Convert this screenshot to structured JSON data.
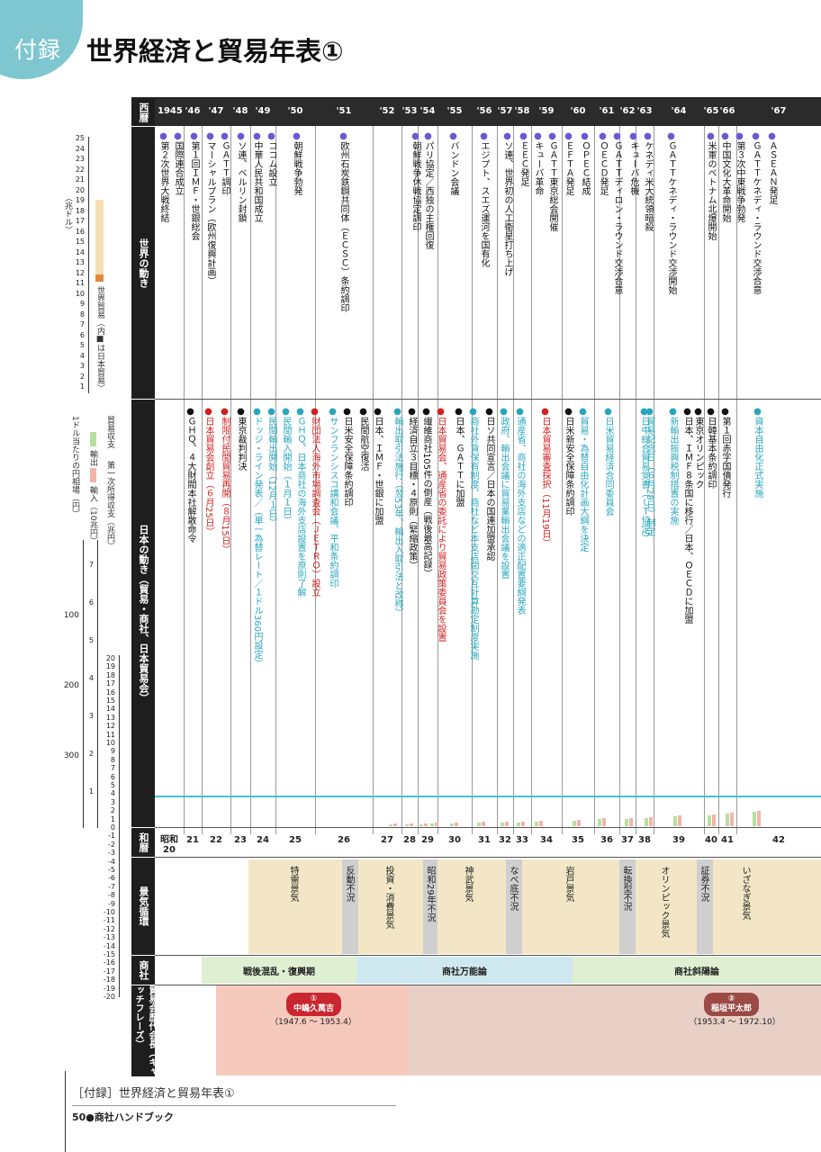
{
  "header": {
    "tab": "付録",
    "title": "世界経済と貿易年表①"
  },
  "row_heads": {
    "seireki": "西暦",
    "world": "世界の動き",
    "japan": "日本の動き（貿易・商社、日本貿易会）",
    "wareki": "和暦",
    "cycle": "景気循環",
    "shosha": "商社",
    "presidents": "貿易会歴代会長（キャッチフレーズ）"
  },
  "left_axis": {
    "world_trade_label": "世界貿易（内■は日本貿易）",
    "unit_label": "（兆ドル）",
    "world_ticks": [
      "25",
      "24",
      "23",
      "22",
      "21",
      "20",
      "19",
      "18",
      "17",
      "16",
      "15",
      "14",
      "13",
      "12",
      "11",
      "10",
      "9",
      "8",
      "7",
      "6",
      "5",
      "4",
      "3",
      "2",
      "1"
    ],
    "legend_balance": "貿易収支",
    "legend_income": "第一次所得収支（兆円）",
    "legend_export": "輸出",
    "legend_import": "輸入（10兆円）",
    "legend_fx": "1ドル当たりの円相場（円）",
    "fx_ticks": [
      "100",
      "200",
      "300"
    ],
    "import_ticks": [
      "7",
      "6",
      "5",
      "4",
      "3",
      "2",
      "1"
    ],
    "bal_ticks": [
      "20",
      "19",
      "18",
      "17",
      "16",
      "15",
      "14",
      "13",
      "12",
      "11",
      "10",
      "9",
      "8",
      "7",
      "6",
      "5",
      "4",
      "3",
      "2",
      "1",
      "0",
      "-1",
      "-2",
      "-3",
      "-4",
      "-5",
      "-6",
      "-7",
      "-8",
      "-9",
      "-10",
      "-11",
      "-12",
      "-13",
      "-14",
      "-15",
      "-16",
      "-17",
      "-18",
      "-19",
      "-20"
    ]
  },
  "years": [
    "1945",
    "'46",
    "'47",
    "'48",
    "'49",
    "'50",
    "'51",
    "'52",
    "'53",
    "'54",
    "'55",
    "'56",
    "'57",
    "'58",
    "'59",
    "'60",
    "'61",
    "'62",
    "'63",
    "'64",
    "'65",
    "'66",
    "'67"
  ],
  "world_events": [
    "第２次世界大戦終結",
    "国際連合成立",
    "第１回ＩＭＦ・世銀総会",
    "マーシャルプラン（欧州復興計画）",
    "ＧＡＴＴ調印",
    "ソ連、ベルリン封鎖",
    "中華人民共和国成立",
    "ココム設立",
    "朝鮮戦争勃発",
    "欧州石炭鉄鋼共同体（ＥＣＳＣ）条約調印",
    "朝鮮戦争休戦協定調印",
    "パリ協定／西独の主権回復",
    "バンドン会議",
    "エジプト、スエズ運河を国有化",
    "ソ連、世界初の人工衛星打ち上げ",
    "ＥＥＣ発足",
    "キューバ革命",
    "ＧＡＴＴ東京総会開催",
    "ＥＦＴＡ発足",
    "ＯＰＥＣ結成",
    "ＯＥＣＤ発足",
    "ＧＡＴＴディロン・ラウンド交渉合意",
    "キューバ危機",
    "ケネディ米大統領暗殺",
    "ＧＡＴＴケネディ・ラウンド交渉開始",
    "米軍のベトナム北爆開始",
    "中国文化大革命開始",
    "第３次中東戦争勃発",
    "ＧＡＴＴケネディ・ラウンド交渉合意",
    "ＡＳＥＡＮ発足"
  ],
  "japan_events": [
    "ＧＨＱ、４大財閥本社解散命令",
    "日本貿易会創立（６月25日）",
    "制限付民間貿易再開（８月15日）",
    "東京裁判判決",
    "ドッジ・ライン発表／（単一為替レート／１ドル360円設定）",
    "民間輸出開始（12月１日）",
    "民間輸入開始（１月１日）",
    "ＧＨＱ、日本商社の海外支店設置を原則了解",
    "財団法人海外市場調査会（ＪＥＴＲＯ）設立",
    "サンフランシスコ講和会議、平和条約調印",
    "日米安全保障条約調印",
    "民間航空復活",
    "日本、ＩＭＦ・世銀に加盟",
    "輸出取引法施行（翌53年、輸出入取引法と改称）",
    "経済自立３目標・４原則（緊縮政策）",
    "繊維商社105件の倒産（戦後最高記録）",
    "日本貿易会、通産省の委託により貿易政策委員会を設置",
    "日本、ＧＡＴＴに加盟",
    "商社外貨保有制度、商社など本支店間交互計算勘定制度実施",
    "日ソ共同宣言／日本の国連加盟承認",
    "政府、輸出会議に貿易業輸出会議を設置",
    "通産省、商社の海外支店などの適正配置要綱発表",
    "日本貿易審査採択（11月19日）",
    "日米新安全保障条約調印",
    "貿易・為替自由化計画大綱を決定",
    "日米貿易経済合同委員会",
    "日中総合貿易覚書（ＬＴ協定）",
    "貿易記念日（６月28日）制定",
    "新輸出振興税制措置の実施",
    "日本、ＩＭＦ８条国に移行／日本、ＯＥＣＤに加盟",
    "東京オリンピック",
    "日韓基本条約調印",
    "第１回赤字国債発行",
    "資本自由化正式実施"
  ],
  "wareki": [
    "昭和20",
    "21",
    "22",
    "23",
    "24",
    "25",
    "26",
    "27",
    "28",
    "29",
    "30",
    "31",
    "32",
    "33",
    "34",
    "35",
    "36",
    "37",
    "38",
    "39",
    "40",
    "41",
    "42"
  ],
  "cycles": [
    "特需景気",
    "反動不況",
    "投資・消費景気",
    "昭和29年不況",
    "神武景気",
    "なべ底不況",
    "岩戸景気",
    "転換型不況",
    "オリンピック景気",
    "証券不況",
    "いざなぎ景気"
  ],
  "shosha": [
    "戦後混乱・復興期",
    "商社万能論",
    "商社斜陽論"
  ],
  "presidents": [
    {
      "no": "①",
      "name": "中嶋久萬吉",
      "term": "（1947.6 〜 1953.4）"
    },
    {
      "no": "②",
      "name": "稲垣平太郎",
      "term": "（1953.4 〜 1972.10）"
    }
  ],
  "footer": {
    "title": "［付録］世界経済と貿易年表①",
    "page": "50●商社ハンドブック"
  },
  "colors": {
    "accent": "#7ec7d0",
    "purple_dot": "#6a5acd",
    "cyan": "#27a6bd",
    "red": "#d02020"
  }
}
